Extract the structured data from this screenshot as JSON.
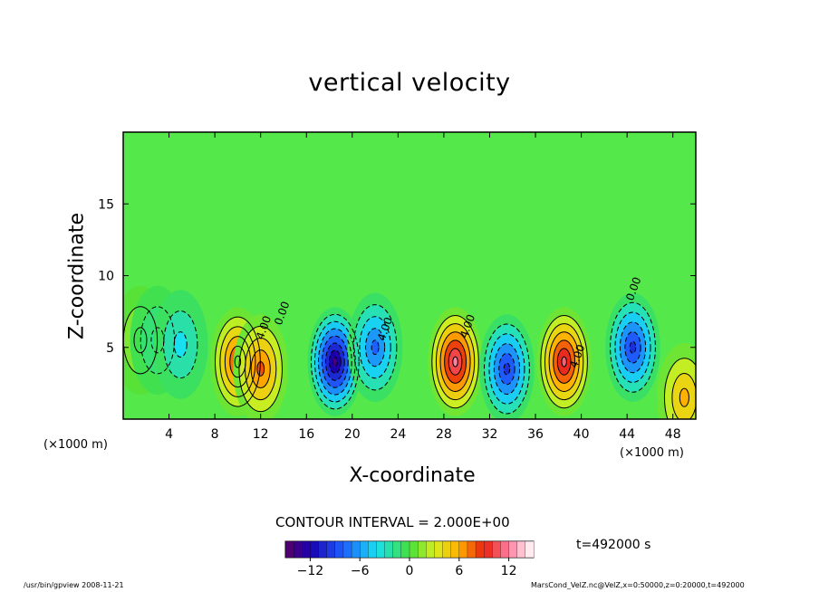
{
  "chart_data": {
    "type": "heatmap",
    "title": "vertical velocity",
    "xlabel": "X-coordinate",
    "ylabel": "Z-coordinate",
    "x_unit": "(×1000 m)",
    "xlim": [
      0,
      50
    ],
    "ylim": [
      0,
      20
    ],
    "x_ticks": [
      4,
      8,
      12,
      16,
      20,
      24,
      28,
      32,
      36,
      40,
      44,
      48
    ],
    "y_ticks": [
      5,
      10,
      15
    ],
    "contour_interval_label": "CONTOUR INTERVAL = 2.000E+00",
    "contour_labels": [
      "0.00",
      "4.00"
    ],
    "time_label": "t=492000 s",
    "colorbar": {
      "min": -15,
      "max": 15,
      "ticks": [
        -12,
        -6,
        0,
        6,
        12
      ]
    },
    "cells": [
      {
        "x": 1.5,
        "z": 5.5,
        "w": 2.0
      },
      {
        "x": 3.0,
        "z": 5.5,
        "w": -2.0
      },
      {
        "x": 5.0,
        "z": 5.2,
        "w": -4.0
      },
      {
        "x": 10.0,
        "z": 4.0,
        "w": 9.0
      },
      {
        "x": 12.0,
        "z": 3.5,
        "w": 8.0
      },
      {
        "x": 18.5,
        "z": 4.0,
        "w": -14.0
      },
      {
        "x": 22.0,
        "z": 5.0,
        "w": -8.0
      },
      {
        "x": 29.0,
        "z": 4.0,
        "w": 12.0
      },
      {
        "x": 33.5,
        "z": 3.5,
        "w": -10.0
      },
      {
        "x": 38.5,
        "z": 4.0,
        "w": 11.0
      },
      {
        "x": 44.5,
        "z": 5.0,
        "w": -10.0
      },
      {
        "x": 49.0,
        "z": 1.5,
        "w": 6.0
      }
    ]
  },
  "footer": {
    "left": "/usr/bin/gpview   2008-11-21",
    "right": "MarsCond_VelZ.nc@VelZ,x=0:50000,z=0:20000,t=492000"
  }
}
